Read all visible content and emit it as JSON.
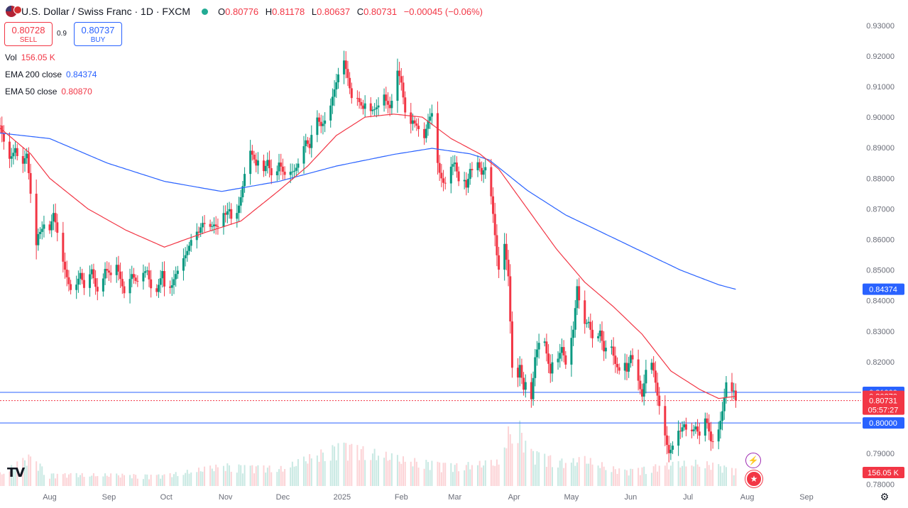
{
  "header": {
    "symbol": "U.S. Dollar / Swiss Franc · 1D · FXCM",
    "open_label": "O",
    "open": "0.80776",
    "high_label": "H",
    "high": "0.81178",
    "low_label": "L",
    "low": "0.80637",
    "close_label": "C",
    "close": "0.80731",
    "change": "−0.00045 (−0.06%)",
    "status_color": "#22ab94"
  },
  "trade": {
    "sell_price": "0.80728",
    "sell_label": "SELL",
    "spread": "0.9",
    "buy_price": "0.80737",
    "buy_label": "BUY"
  },
  "indicators": [
    {
      "label": "Vol",
      "value": "156.05 K",
      "color": "#f23645"
    },
    {
      "label": "EMA 200 close",
      "value": "0.84374",
      "color": "#2962ff"
    },
    {
      "label": "EMA 50 close",
      "value": "0.80870",
      "color": "#f23645"
    }
  ],
  "icons": {
    "logo": "tradingview-logo",
    "lightning": "lightning-icon",
    "flag": "us-flag-icon",
    "calendar": "economic-event-icon",
    "settings": "gear-icon"
  },
  "colors": {
    "up": "#089981",
    "down": "#f23645",
    "ema200": "#2962ff",
    "ema50": "#f23645",
    "hline": "#2962ff"
  },
  "price_labels": [
    {
      "text": "0.84374",
      "price": 0.84374,
      "bg": "#2962ff"
    },
    {
      "text": "0.81000",
      "price": 0.81,
      "bg": "#2962ff"
    },
    {
      "text": "0.80870",
      "price": 0.8087,
      "bg": "#f23645"
    },
    {
      "text": "0.80731",
      "price": 0.80731,
      "bg": "#f23645",
      "sub": "05:57:27"
    },
    {
      "text": "0.80000",
      "price": 0.8,
      "bg": "#2962ff"
    }
  ],
  "volume_label": {
    "text": "156.05 K",
    "bg": "#f23645"
  },
  "chart_data": {
    "type": "candlestick",
    "y_range": [
      0.7752,
      0.9325
    ],
    "y_ticks": [
      "0.93000",
      "0.92000",
      "0.91000",
      "0.90000",
      "0.89000",
      "0.88000",
      "0.87000",
      "0.86000",
      "0.85000",
      "0.84000",
      "0.83000",
      "0.82000",
      "0.81000",
      "0.80000",
      "0.79000",
      "0.78000"
    ],
    "y_tick_values": [
      0.93,
      0.92,
      0.91,
      0.9,
      0.89,
      0.88,
      0.87,
      0.86,
      0.85,
      0.84,
      0.83,
      0.82,
      0.81,
      0.8,
      0.79,
      0.78
    ],
    "x_ticks": [
      "Aug",
      "Sep",
      "Oct",
      "Nov",
      "Dec",
      "2025",
      "Feb",
      "Mar",
      "Apr",
      "May",
      "Jun",
      "Jul",
      "Aug",
      "Sep"
    ],
    "x_tick_days": [
      0,
      31,
      61,
      92,
      122,
      153,
      184,
      212,
      243,
      273,
      304,
      334,
      365,
      396
    ],
    "horizontal_lines": [
      0.81,
      0.8
    ],
    "current_price": 0.80731,
    "close_anchors": [
      [
        -29,
        0.896
      ],
      [
        -26,
        0.895
      ],
      [
        -22,
        0.886
      ],
      [
        -18,
        0.892
      ],
      [
        -15,
        0.883
      ],
      [
        -12,
        0.886
      ],
      [
        -10,
        0.873
      ],
      [
        -8,
        0.854
      ],
      [
        -6,
        0.863
      ],
      [
        -3,
        0.867
      ],
      [
        0,
        0.863
      ],
      [
        2,
        0.867
      ],
      [
        4,
        0.86
      ],
      [
        6,
        0.854
      ],
      [
        9,
        0.849
      ],
      [
        12,
        0.844
      ],
      [
        14,
        0.846
      ],
      [
        16,
        0.848
      ],
      [
        18,
        0.842
      ],
      [
        20,
        0.845
      ],
      [
        22,
        0.85
      ],
      [
        24,
        0.846
      ],
      [
        26,
        0.844
      ],
      [
        29,
        0.851
      ],
      [
        31,
        0.848
      ],
      [
        33,
        0.845
      ],
      [
        35,
        0.85
      ],
      [
        37,
        0.847
      ],
      [
        39,
        0.844
      ],
      [
        41,
        0.848
      ],
      [
        43,
        0.85
      ],
      [
        45,
        0.846
      ],
      [
        47,
        0.844
      ],
      [
        49,
        0.847
      ],
      [
        51,
        0.849
      ],
      [
        53,
        0.845
      ],
      [
        55,
        0.843
      ],
      [
        57,
        0.847
      ],
      [
        59,
        0.85
      ],
      [
        60,
        0.844
      ],
      [
        62,
        0.841
      ],
      [
        64,
        0.843
      ],
      [
        66,
        0.848
      ],
      [
        68,
        0.852
      ],
      [
        70,
        0.856
      ],
      [
        72,
        0.858
      ],
      [
        74,
        0.86
      ],
      [
        76,
        0.861
      ],
      [
        78,
        0.86
      ],
      [
        80,
        0.864
      ],
      [
        82,
        0.865
      ],
      [
        84,
        0.866
      ],
      [
        86,
        0.867
      ],
      [
        88,
        0.865
      ],
      [
        90,
        0.868
      ],
      [
        92,
        0.866
      ],
      [
        94,
        0.868
      ],
      [
        96,
        0.863
      ],
      [
        98,
        0.87
      ],
      [
        100,
        0.876
      ],
      [
        102,
        0.883
      ],
      [
        104,
        0.89
      ],
      [
        106,
        0.886
      ],
      [
        108,
        0.882
      ],
      [
        110,
        0.886
      ],
      [
        112,
        0.883
      ],
      [
        114,
        0.888
      ],
      [
        116,
        0.883
      ],
      [
        118,
        0.88
      ],
      [
        120,
        0.884
      ],
      [
        122,
        0.88
      ],
      [
        124,
        0.878
      ],
      [
        126,
        0.882
      ],
      [
        128,
        0.884
      ],
      [
        130,
        0.887
      ],
      [
        132,
        0.89
      ],
      [
        134,
        0.892
      ],
      [
        136,
        0.888
      ],
      [
        138,
        0.896
      ],
      [
        140,
        0.899
      ],
      [
        142,
        0.898
      ],
      [
        144,
        0.901
      ],
      [
        146,
        0.903
      ],
      [
        148,
        0.907
      ],
      [
        150,
        0.91
      ],
      [
        152,
        0.914
      ],
      [
        154,
        0.917
      ],
      [
        156,
        0.913
      ],
      [
        158,
        0.908
      ],
      [
        160,
        0.91
      ],
      [
        162,
        0.906
      ],
      [
        164,
        0.902
      ],
      [
        166,
        0.904
      ],
      [
        168,
        0.9
      ],
      [
        170,
        0.902
      ],
      [
        172,
        0.905
      ],
      [
        174,
        0.912
      ],
      [
        176,
        0.907
      ],
      [
        178,
        0.903
      ],
      [
        180,
        0.906
      ],
      [
        182,
        0.913
      ],
      [
        184,
        0.91
      ],
      [
        186,
        0.902
      ],
      [
        188,
        0.899
      ],
      [
        190,
        0.901
      ],
      [
        192,
        0.898
      ],
      [
        194,
        0.894
      ],
      [
        196,
        0.891
      ],
      [
        198,
        0.897
      ],
      [
        200,
        0.901
      ],
      [
        202,
        0.89
      ],
      [
        204,
        0.884
      ],
      [
        206,
        0.88
      ],
      [
        208,
        0.878
      ],
      [
        210,
        0.882
      ],
      [
        212,
        0.883
      ],
      [
        214,
        0.878
      ],
      [
        216,
        0.883
      ],
      [
        218,
        0.879
      ],
      [
        220,
        0.885
      ],
      [
        222,
        0.883
      ],
      [
        224,
        0.884
      ],
      [
        226,
        0.879
      ],
      [
        228,
        0.882
      ],
      [
        230,
        0.88
      ],
      [
        232,
        0.87
      ],
      [
        234,
        0.857
      ],
      [
        236,
        0.847
      ],
      [
        238,
        0.858
      ],
      [
        240,
        0.846
      ],
      [
        242,
        0.816
      ],
      [
        244,
        0.81
      ],
      [
        246,
        0.82
      ],
      [
        248,
        0.813
      ],
      [
        250,
        0.818
      ],
      [
        252,
        0.808
      ],
      [
        254,
        0.82
      ],
      [
        256,
        0.824
      ],
      [
        258,
        0.829
      ],
      [
        260,
        0.823
      ],
      [
        262,
        0.818
      ],
      [
        264,
        0.826
      ],
      [
        266,
        0.822
      ],
      [
        268,
        0.824
      ],
      [
        270,
        0.817
      ],
      [
        272,
        0.823
      ],
      [
        274,
        0.83
      ],
      [
        276,
        0.846
      ],
      [
        278,
        0.838
      ],
      [
        280,
        0.834
      ],
      [
        282,
        0.833
      ],
      [
        284,
        0.826
      ],
      [
        286,
        0.824
      ],
      [
        288,
        0.829
      ],
      [
        290,
        0.824
      ],
      [
        292,
        0.828
      ],
      [
        294,
        0.827
      ],
      [
        296,
        0.82
      ],
      [
        298,
        0.816
      ],
      [
        300,
        0.82
      ],
      [
        302,
        0.815
      ],
      [
        304,
        0.822
      ],
      [
        306,
        0.821
      ],
      [
        308,
        0.816
      ],
      [
        310,
        0.81
      ],
      [
        312,
        0.817
      ],
      [
        314,
        0.82
      ],
      [
        316,
        0.815
      ],
      [
        318,
        0.808
      ],
      [
        320,
        0.803
      ],
      [
        322,
        0.798
      ],
      [
        324,
        0.792
      ],
      [
        326,
        0.793
      ],
      [
        328,
        0.796
      ],
      [
        330,
        0.795
      ],
      [
        332,
        0.798
      ],
      [
        334,
        0.796
      ],
      [
        336,
        0.799
      ],
      [
        338,
        0.801
      ],
      [
        340,
        0.797
      ],
      [
        342,
        0.802
      ],
      [
        344,
        0.798
      ],
      [
        346,
        0.792
      ],
      [
        348,
        0.793
      ],
      [
        350,
        0.799
      ],
      [
        352,
        0.806
      ],
      [
        354,
        0.815
      ],
      [
        356,
        0.81
      ],
      [
        358,
        0.809
      ],
      [
        359,
        0.8073
      ]
    ],
    "ema200_anchors": [
      [
        -29,
        0.895
      ],
      [
        0,
        0.893
      ],
      [
        30,
        0.885
      ],
      [
        60,
        0.879
      ],
      [
        90,
        0.8757
      ],
      [
        120,
        0.879
      ],
      [
        150,
        0.884
      ],
      [
        180,
        0.8878
      ],
      [
        200,
        0.8898
      ],
      [
        220,
        0.888
      ],
      [
        230,
        0.886
      ],
      [
        250,
        0.876
      ],
      [
        270,
        0.868
      ],
      [
        290,
        0.862
      ],
      [
        310,
        0.856
      ],
      [
        330,
        0.85
      ],
      [
        350,
        0.8452
      ],
      [
        359,
        0.8437
      ]
    ],
    "ema50_anchors": [
      [
        -29,
        0.898
      ],
      [
        -10,
        0.888
      ],
      [
        0,
        0.88
      ],
      [
        20,
        0.87
      ],
      [
        40,
        0.863
      ],
      [
        60,
        0.8575
      ],
      [
        80,
        0.862
      ],
      [
        100,
        0.866
      ],
      [
        120,
        0.876
      ],
      [
        135,
        0.884
      ],
      [
        150,
        0.894
      ],
      [
        165,
        0.9
      ],
      [
        180,
        0.901
      ],
      [
        195,
        0.9
      ],
      [
        210,
        0.893
      ],
      [
        225,
        0.888
      ],
      [
        235,
        0.883
      ],
      [
        250,
        0.87
      ],
      [
        265,
        0.857
      ],
      [
        280,
        0.846
      ],
      [
        295,
        0.838
      ],
      [
        310,
        0.829
      ],
      [
        325,
        0.817
      ],
      [
        340,
        0.811
      ],
      [
        350,
        0.808
      ],
      [
        359,
        0.8087
      ]
    ],
    "volume_anchors": [
      [
        -29,
        0.15
      ],
      [
        -10,
        0.5
      ],
      [
        0,
        0.2
      ],
      [
        60,
        0.18
      ],
      [
        92,
        0.35
      ],
      [
        122,
        0.3
      ],
      [
        153,
        0.7
      ],
      [
        184,
        0.45
      ],
      [
        212,
        0.35
      ],
      [
        235,
        0.4
      ],
      [
        240,
        0.9
      ],
      [
        246,
        1.0
      ],
      [
        250,
        0.6
      ],
      [
        270,
        0.4
      ],
      [
        280,
        0.45
      ],
      [
        300,
        0.25
      ],
      [
        320,
        0.35
      ],
      [
        340,
        0.4
      ],
      [
        359,
        0.28
      ]
    ]
  }
}
